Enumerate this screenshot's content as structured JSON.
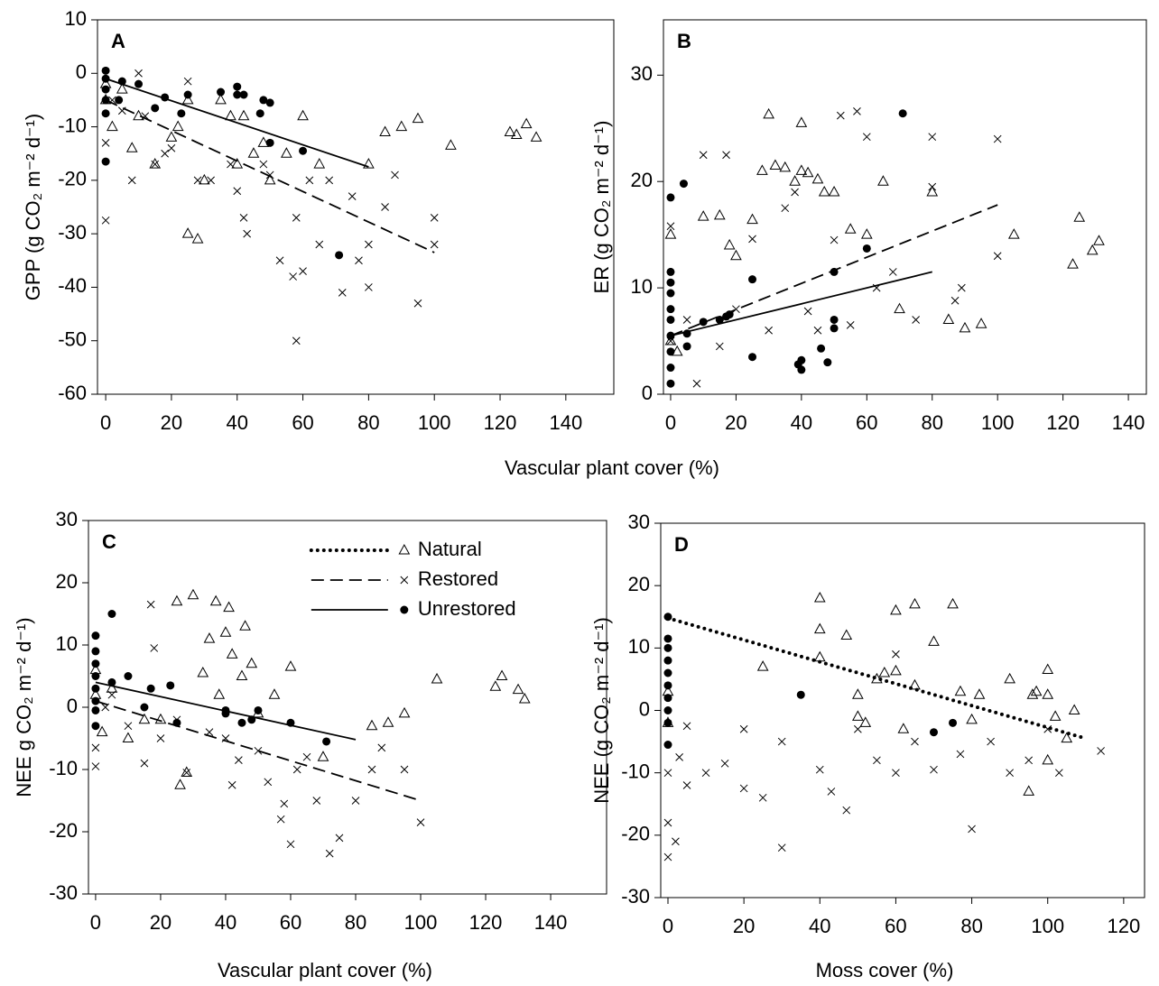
{
  "chart_data": [
    {
      "type": "scatter",
      "panel_label": "A",
      "ylabel": "GPP (g CO₂ m⁻² d⁻¹)",
      "xlabel": "Vascular plant cover (%)",
      "xlim": [
        -2.5,
        154.6
      ],
      "ylim": [
        -60,
        10
      ],
      "xticks": [
        0,
        20,
        40,
        60,
        80,
        100,
        120,
        140
      ],
      "yticks": [
        -60,
        -50,
        -40,
        -30,
        -20,
        -10,
        0,
        10
      ],
      "series": [
        {
          "marker": "triangle",
          "color": "#000000",
          "line_style": "dotted",
          "x": [
            0,
            0,
            2,
            5,
            8,
            10,
            15,
            20,
            22,
            25,
            25,
            28,
            30,
            35,
            38,
            40,
            42,
            45,
            48,
            50,
            55,
            60,
            65,
            80,
            85,
            90,
            95,
            105,
            123,
            125,
            128,
            131
          ],
          "values": [
            -2,
            -5,
            -10,
            -3,
            -14,
            -8,
            -17,
            -12,
            -10,
            -5,
            -30,
            -31,
            -20,
            -5,
            -8,
            -17,
            -8,
            -15,
            -13,
            -20,
            -15,
            -8,
            -17,
            -17,
            -11,
            -10,
            -8.5,
            -13.5,
            -11,
            -11.5,
            -9.5,
            -12
          ]
        },
        {
          "marker": "x",
          "color": "#000000",
          "line_style": "dashed",
          "x": [
            0,
            0,
            2,
            5,
            8,
            10,
            12,
            15,
            18,
            20,
            25,
            28,
            32,
            38,
            40,
            42,
            43,
            48,
            50,
            53,
            57,
            58,
            58,
            60,
            62,
            65,
            68,
            72,
            75,
            77,
            80,
            80,
            85,
            88,
            95,
            100,
            100
          ],
          "values": [
            -27.5,
            -13,
            -5,
            -7,
            -20,
            0,
            -8,
            -17,
            -15,
            -14,
            -1.5,
            -20,
            -20,
            -17,
            -22,
            -27,
            -30,
            -17,
            -19,
            -35,
            -38,
            -27,
            -50,
            -37,
            -20,
            -32,
            -20,
            -41,
            -23,
            -35,
            -40,
            -32,
            -25,
            -19,
            -43,
            -27,
            -32
          ],
          "fit": {
            "x": [
              0,
              100
            ],
            "y": [
              -5,
              -33.5
            ]
          }
        },
        {
          "marker": "circle",
          "color": "#000000",
          "line_style": "solid",
          "x": [
            0,
            0,
            0,
            0,
            0,
            0,
            5,
            4,
            10,
            15,
            18,
            23,
            25,
            35,
            40,
            40,
            42,
            47,
            48,
            50,
            50,
            60,
            71
          ],
          "values": [
            0.5,
            -1,
            -3,
            -5,
            -7.5,
            -16.5,
            -1.5,
            -5,
            -2,
            -6.5,
            -4.5,
            -7.5,
            -4,
            -3.5,
            -4,
            -2.5,
            -4,
            -7.5,
            -5,
            -5.5,
            -13,
            -14.5,
            -34
          ],
          "fit": {
            "x": [
              0,
              80
            ],
            "y": [
              -1,
              -17.5
            ]
          }
        }
      ]
    },
    {
      "type": "scatter",
      "panel_label": "B",
      "ylabel": "ER (g CO₂ m⁻² d⁻¹)",
      "xlim": [
        -2.2,
        145.5
      ],
      "ylim": [
        0,
        35.2
      ],
      "xticks": [
        0,
        20,
        40,
        60,
        80,
        100,
        120,
        140
      ],
      "yticks": [
        0,
        10,
        20,
        30
      ],
      "series": [
        {
          "marker": "triangle",
          "color": "#000000",
          "line_style": "dotted",
          "x": [
            0,
            0,
            2,
            10,
            15,
            18,
            20,
            25,
            28,
            30,
            32,
            35,
            38,
            40,
            40,
            42,
            45,
            47,
            50,
            55,
            60,
            65,
            70,
            80,
            85,
            90,
            95,
            105,
            123,
            125,
            129,
            131
          ],
          "values": [
            15,
            5,
            4,
            16.7,
            16.8,
            14,
            13,
            16.4,
            21,
            26.3,
            21.5,
            21.3,
            20,
            25.5,
            21,
            20.8,
            20.2,
            19,
            19,
            15.5,
            15,
            20,
            8,
            19,
            7,
            6.2,
            6.6,
            15,
            12.2,
            16.6,
            13.5,
            14.4
          ]
        },
        {
          "marker": "x",
          "color": "#000000",
          "line_style": "dashed",
          "x": [
            0,
            0,
            5,
            8,
            10,
            15,
            17,
            20,
            25,
            30,
            35,
            38,
            42,
            45,
            50,
            52,
            55,
            57,
            60,
            63,
            68,
            75,
            80,
            80,
            87,
            89,
            100,
            100
          ],
          "values": [
            15.8,
            5,
            7,
            1,
            22.5,
            4.5,
            22.5,
            8,
            14.6,
            6,
            17.5,
            19,
            7.8,
            6,
            14.5,
            26.2,
            6.5,
            26.6,
            24.2,
            10,
            11.5,
            7,
            24.2,
            19.5,
            8.8,
            10,
            24,
            13
          ],
          "fit": {
            "x": [
              0,
              100
            ],
            "y": [
              5.5,
              17.8
            ]
          }
        },
        {
          "marker": "circle",
          "color": "#000000",
          "line_style": "solid",
          "x": [
            0,
            0,
            0,
            0,
            0,
            0,
            0,
            0,
            0,
            0,
            4,
            5,
            5,
            10,
            15,
            17,
            18,
            25,
            25,
            39,
            40,
            40,
            46,
            48,
            50,
            50,
            50,
            60,
            71
          ],
          "values": [
            1,
            2.5,
            4,
            5.5,
            7,
            8,
            9.5,
            10.5,
            11.5,
            18.5,
            19.8,
            4.5,
            5.7,
            6.8,
            7,
            7.3,
            7.5,
            10.8,
            3.5,
            2.8,
            2.3,
            3.2,
            4.3,
            3,
            6.2,
            7,
            11.5,
            13.7,
            26.4
          ],
          "fit": {
            "x": [
              0,
              80
            ],
            "y": [
              5.5,
              11.5
            ]
          }
        }
      ]
    },
    {
      "type": "scatter",
      "panel_label": "C",
      "ylabel": "NEE g CO₂ m⁻² d⁻¹)",
      "xlabel": "Vascular plant cover (%)",
      "legend": "upper center",
      "xlim": [
        -2.2,
        157.2
      ],
      "ylim": [
        -30,
        30
      ],
      "xticks": [
        0,
        20,
        40,
        60,
        80,
        100,
        120,
        140
      ],
      "yticks": [
        -30,
        -20,
        -10,
        0,
        10,
        20,
        30
      ],
      "series": [
        {
          "name": "Natural",
          "marker": "triangle",
          "color": "#000000",
          "line_style": "dotted",
          "x": [
            0,
            0,
            2,
            5,
            10,
            15,
            20,
            25,
            26,
            28,
            30,
            33,
            35,
            37,
            38,
            40,
            41,
            42,
            45,
            46,
            48,
            50,
            55,
            60,
            70,
            85,
            90,
            95,
            105,
            123,
            125,
            130,
            132
          ],
          "values": [
            6,
            2,
            -4,
            3,
            -5,
            -2,
            -2,
            17,
            -12.5,
            -10.5,
            18,
            5.5,
            11,
            17,
            2,
            12,
            16,
            8.5,
            5,
            13,
            7,
            -1,
            2,
            6.5,
            -8,
            -3,
            -2.5,
            -1,
            4.5,
            3.3,
            5,
            2.8,
            1.3
          ]
        },
        {
          "name": "Restored",
          "marker": "x",
          "color": "#000000",
          "line_style": "dashed",
          "x": [
            0,
            0,
            3,
            5,
            10,
            15,
            17,
            18,
            20,
            25,
            28,
            35,
            40,
            42,
            44,
            50,
            53,
            57,
            58,
            60,
            62,
            65,
            68,
            72,
            75,
            80,
            85,
            88,
            95,
            100
          ],
          "values": [
            -6.5,
            -9.5,
            0,
            2,
            -3,
            -9,
            16.5,
            9.5,
            -5,
            -2,
            -10.5,
            -4,
            -5,
            -12.5,
            -8.5,
            -7,
            -12,
            -18,
            -15.5,
            -22,
            -10,
            -8,
            -15,
            -23.5,
            -21,
            -15,
            -10,
            -6.5,
            -10,
            -18.5
          ],
          "fit": {
            "x": [
              0,
              100
            ],
            "y": [
              1,
              -15
            ]
          }
        },
        {
          "name": "Unrestored",
          "marker": "circle",
          "color": "#000000",
          "line_style": "solid",
          "x": [
            0,
            0,
            0,
            0,
            0,
            0,
            0,
            0,
            5,
            5,
            10,
            15,
            17,
            23,
            25,
            40,
            40,
            45,
            48,
            50,
            60,
            71
          ],
          "values": [
            11.5,
            9,
            7,
            5,
            3,
            1,
            -0.5,
            -3,
            15,
            4,
            5,
            0,
            3,
            3.5,
            -2.5,
            -1,
            -0.5,
            -2.5,
            -2,
            -0.5,
            -2.5,
            -5.5
          ],
          "fit": {
            "x": [
              0,
              80
            ],
            "y": [
              4,
              -5.2
            ]
          }
        }
      ]
    },
    {
      "type": "scatter",
      "panel_label": "D",
      "ylabel": "NEE (g CO₂ m⁻² d⁻¹)",
      "xlabel": "Moss cover (%)",
      "xlim": [
        -1.9,
        125.5
      ],
      "ylim": [
        -30,
        30
      ],
      "xticks": [
        0,
        20,
        40,
        60,
        80,
        100,
        120
      ],
      "yticks": [
        -30,
        -20,
        -10,
        0,
        10,
        20,
        30
      ],
      "series": [
        {
          "marker": "triangle",
          "color": "#000000",
          "line_style": "dotted",
          "x": [
            40,
            40,
            40,
            47,
            50,
            50,
            52,
            55,
            57,
            60,
            60,
            62,
            65,
            65,
            70,
            75,
            77,
            80,
            82,
            90,
            95,
            96,
            97,
            100,
            100,
            100,
            102,
            105,
            107,
            25,
            0,
            0
          ],
          "values": [
            18,
            13,
            8.5,
            12,
            2.5,
            -1,
            -2,
            5,
            6,
            6.3,
            16,
            -3,
            17,
            4,
            11,
            17,
            3,
            -1.5,
            2.5,
            5,
            -13,
            2.5,
            3,
            6.5,
            -8,
            2.5,
            -1,
            -4.5,
            0,
            7,
            3,
            -2
          ],
          "fit": {
            "x": [
              0,
              110
            ],
            "y": [
              14.8,
              -4.5
            ]
          }
        },
        {
          "marker": "x",
          "color": "#000000",
          "line_style": "dashed",
          "x": [
            0,
            0,
            0,
            2,
            3,
            5,
            5,
            10,
            15,
            20,
            20,
            25,
            30,
            30,
            40,
            43,
            47,
            50,
            55,
            60,
            60,
            65,
            70,
            77,
            80,
            85,
            90,
            95,
            100,
            103,
            114
          ],
          "values": [
            -10,
            -18,
            -23.5,
            -21,
            -7.5,
            -12,
            -2.5,
            -10,
            -8.5,
            -3,
            -12.5,
            -14,
            -22,
            -5,
            -9.5,
            -13,
            -16,
            -3,
            -8,
            9,
            -10,
            -5,
            -9.5,
            -7,
            -19,
            -5,
            -10,
            -8,
            -3,
            -10,
            -6.5
          ]
        },
        {
          "marker": "circle",
          "color": "#000000",
          "line_style": "solid",
          "x": [
            0,
            0,
            0,
            0,
            0,
            0,
            0,
            0,
            0,
            0,
            35,
            70,
            75
          ],
          "values": [
            15,
            11.5,
            10,
            8,
            6,
            4,
            2,
            0,
            -2,
            -5.5,
            2.5,
            -3.5,
            -2
          ]
        }
      ]
    }
  ]
}
